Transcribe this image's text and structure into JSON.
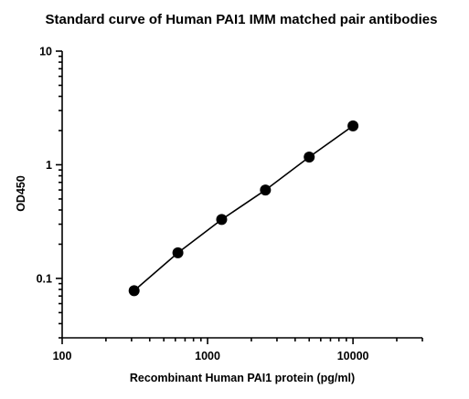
{
  "chart_data": {
    "type": "scatter",
    "title": "Standard curve of Human PAI1 IMM matched pair antibodies",
    "xlabel": "Recombinant Human PAI1 protein (pg/ml)",
    "ylabel": "OD450",
    "x_scale": "log",
    "y_scale": "log",
    "xlim": [
      100,
      30000
    ],
    "ylim": [
      0.03,
      10
    ],
    "x_ticks": [
      100,
      1000,
      10000
    ],
    "x_tick_labels": [
      "100",
      "1000",
      "10000"
    ],
    "y_ticks": [
      0.1,
      1,
      10
    ],
    "y_tick_labels": [
      "0.1",
      "1",
      "10"
    ],
    "grid": false,
    "series": [
      {
        "x": [
          312.5,
          625,
          1250,
          2500,
          5000,
          10000
        ],
        "y": [
          0.078,
          0.168,
          0.33,
          0.6,
          1.17,
          2.2
        ],
        "line": true,
        "marker": "circle",
        "color": "#000000"
      }
    ]
  }
}
